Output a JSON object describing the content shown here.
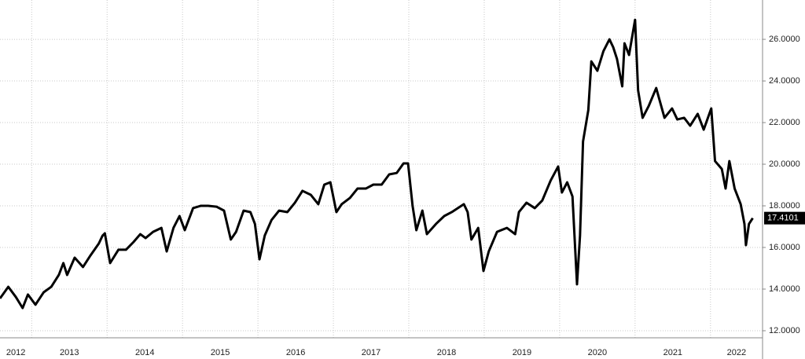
{
  "chart_data": {
    "type": "line",
    "x": [
      2012.58,
      2012.69,
      2012.79,
      2012.88,
      2012.95,
      2013.05,
      2013.16,
      2013.26,
      2013.36,
      2013.42,
      2013.47,
      2013.57,
      2013.68,
      2013.78,
      2013.89,
      2013.94,
      2013.97,
      2014.04,
      2014.15,
      2014.25,
      2014.35,
      2014.44,
      2014.51,
      2014.61,
      2014.72,
      2014.79,
      2014.88,
      2014.96,
      2015.03,
      2015.14,
      2015.24,
      2015.34,
      2015.45,
      2015.55,
      2015.64,
      2015.71,
      2015.81,
      2015.9,
      2015.96,
      2016.02,
      2016.09,
      2016.18,
      2016.28,
      2016.39,
      2016.49,
      2016.59,
      2016.7,
      2016.8,
      2016.88,
      2016.96,
      2017.04,
      2017.11,
      2017.22,
      2017.32,
      2017.43,
      2017.53,
      2017.64,
      2017.74,
      2017.84,
      2017.93,
      2017.99,
      2018.05,
      2018.1,
      2018.18,
      2018.24,
      2018.36,
      2018.47,
      2018.57,
      2018.73,
      2018.78,
      2018.83,
      2018.92,
      2018.99,
      2019.06,
      2019.17,
      2019.3,
      2019.41,
      2019.46,
      2019.56,
      2019.67,
      2019.77,
      2019.88,
      2019.98,
      2020.03,
      2020.1,
      2020.17,
      2020.23,
      2020.27,
      2020.31,
      2020.38,
      2020.42,
      2020.5,
      2020.58,
      2020.66,
      2020.71,
      2020.76,
      2020.83,
      2020.86,
      2020.92,
      2021.0,
      2021.04,
      2021.1,
      2021.18,
      2021.28,
      2021.39,
      2021.49,
      2021.56,
      2021.65,
      2021.73,
      2021.83,
      2021.91,
      2022.01,
      2022.06,
      2022.15,
      2022.2,
      2022.25,
      2022.32,
      2022.4,
      2022.45,
      2022.47,
      2022.51,
      2022.56
    ],
    "series": [
      {
        "color": "#000000",
        "values": [
          13.55,
          14.11,
          13.62,
          13.09,
          13.74,
          13.25,
          13.85,
          14.11,
          14.68,
          15.25,
          14.68,
          15.51,
          15.06,
          15.62,
          16.19,
          16.57,
          16.68,
          15.25,
          15.89,
          15.89,
          16.26,
          16.64,
          16.45,
          16.75,
          16.94,
          15.81,
          16.94,
          17.51,
          16.83,
          17.89,
          18.0,
          18.0,
          17.96,
          17.77,
          16.38,
          16.75,
          17.77,
          17.7,
          17.13,
          15.43,
          16.57,
          17.32,
          17.77,
          17.7,
          18.15,
          18.72,
          18.53,
          18.08,
          19.02,
          19.13,
          17.7,
          18.08,
          18.38,
          18.83,
          18.83,
          19.02,
          19.02,
          19.51,
          19.58,
          20.04,
          20.04,
          18.0,
          16.83,
          17.77,
          16.64,
          17.13,
          17.51,
          17.7,
          18.08,
          17.7,
          16.38,
          16.94,
          14.87,
          15.81,
          16.75,
          16.94,
          16.64,
          17.7,
          18.15,
          17.89,
          18.26,
          19.21,
          19.89,
          18.64,
          19.13,
          18.45,
          14.23,
          16.57,
          21.09,
          22.6,
          24.94,
          24.49,
          25.43,
          26.0,
          25.62,
          25.06,
          23.74,
          25.81,
          25.25,
          26.94,
          23.55,
          22.23,
          22.79,
          23.66,
          22.23,
          22.68,
          22.15,
          22.23,
          21.85,
          22.42,
          21.66,
          22.68,
          20.15,
          19.77,
          18.83,
          20.15,
          18.83,
          18.08,
          17.13,
          16.11,
          17.13,
          17.4101
        ]
      }
    ],
    "xlim": [
      2012.58,
      2022.69
    ],
    "xticks": [
      {
        "value": 2012,
        "label": "2012"
      },
      {
        "value": 2013,
        "label": "2013"
      },
      {
        "value": 2014,
        "label": "2014"
      },
      {
        "value": 2015,
        "label": "2015"
      },
      {
        "value": 2016,
        "label": "2016"
      },
      {
        "value": 2017,
        "label": "2017"
      },
      {
        "value": 2018,
        "label": "2018"
      },
      {
        "value": 2019,
        "label": "2019"
      },
      {
        "value": 2020,
        "label": "2020"
      },
      {
        "value": 2021,
        "label": "2021"
      },
      {
        "value": 2022,
        "label": "2022"
      }
    ],
    "ylim": [
      11.66,
      27.89
    ],
    "yticks": [
      {
        "value": 12,
        "label": "12.0000"
      },
      {
        "value": 14,
        "label": "14.0000"
      },
      {
        "value": 16,
        "label": "16.0000"
      },
      {
        "value": 18,
        "label": "18.0000"
      },
      {
        "value": 20,
        "label": "20.0000"
      },
      {
        "value": 22,
        "label": "22.0000"
      },
      {
        "value": 24,
        "label": "24.0000"
      },
      {
        "value": 26,
        "label": "26.0000"
      }
    ],
    "grid": true
  }
}
